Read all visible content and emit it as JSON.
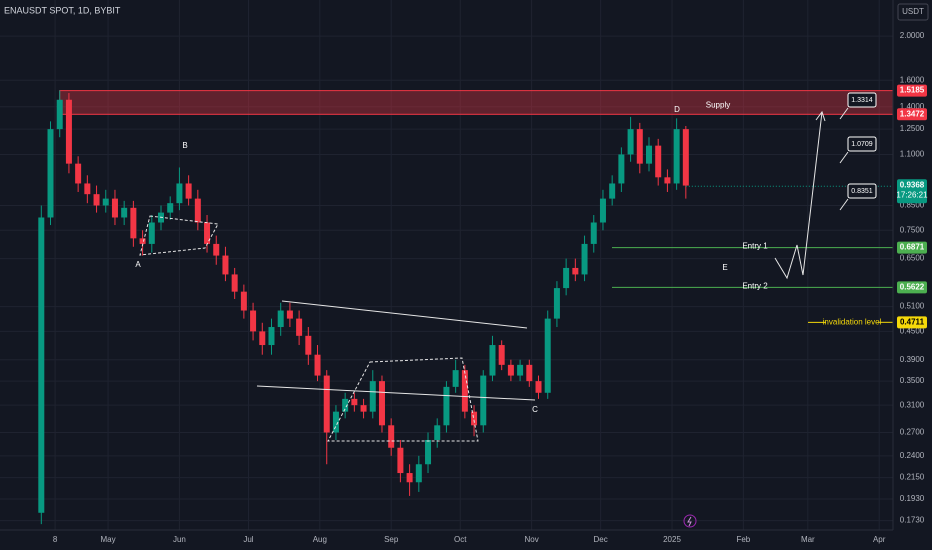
{
  "chart_data": {
    "type": "candlestick",
    "title": "ENAUSDT SPOT, 1D, BYBIT",
    "currency": "USDT",
    "log_scale": true,
    "grid": true,
    "up_color": "#089981",
    "down_color": "#f23645",
    "x": [
      1,
      5,
      9,
      13,
      17,
      21,
      25,
      29,
      33,
      37,
      41,
      45,
      49,
      53,
      57,
      61,
      65,
      69,
      73,
      77,
      81,
      85,
      89,
      93,
      97,
      101,
      105,
      109,
      113,
      117,
      121,
      125,
      129,
      133,
      137,
      141,
      145,
      149,
      153,
      157,
      161,
      165,
      169,
      173,
      177,
      181,
      185,
      189,
      193,
      197,
      201,
      205,
      209,
      213,
      217,
      221,
      225,
      229,
      233,
      237,
      241,
      245,
      249,
      253,
      257,
      261,
      265,
      269,
      273,
      277,
      281
    ],
    "open": [
      0.18,
      0.8,
      1.25,
      1.45,
      1.05,
      0.95,
      0.9,
      0.85,
      0.88,
      0.8,
      0.84,
      0.72,
      0.7,
      0.78,
      0.82,
      0.86,
      0.95,
      0.88,
      0.78,
      0.7,
      0.66,
      0.6,
      0.55,
      0.5,
      0.45,
      0.42,
      0.46,
      0.5,
      0.48,
      0.44,
      0.4,
      0.36,
      0.27,
      0.3,
      0.32,
      0.31,
      0.3,
      0.35,
      0.28,
      0.25,
      0.22,
      0.21,
      0.23,
      0.26,
      0.28,
      0.34,
      0.37,
      0.3,
      0.28,
      0.36,
      0.42,
      0.38,
      0.36,
      0.38,
      0.35,
      0.33,
      0.48,
      0.56,
      0.62,
      0.6,
      0.7,
      0.78,
      0.88,
      0.95,
      1.1,
      1.25,
      1.05,
      1.15,
      0.98,
      0.95,
      1.25
    ],
    "high": [
      0.85,
      1.3,
      1.52,
      1.5,
      1.09,
      0.99,
      0.94,
      0.92,
      0.92,
      0.87,
      0.87,
      0.75,
      0.81,
      0.85,
      0.89,
      1.03,
      0.99,
      0.92,
      0.81,
      0.73,
      0.69,
      0.62,
      0.57,
      0.52,
      0.47,
      0.48,
      0.52,
      0.52,
      0.5,
      0.46,
      0.42,
      0.37,
      0.31,
      0.33,
      0.33,
      0.32,
      0.37,
      0.36,
      0.29,
      0.26,
      0.23,
      0.24,
      0.27,
      0.29,
      0.35,
      0.39,
      0.38,
      0.31,
      0.37,
      0.44,
      0.43,
      0.39,
      0.39,
      0.39,
      0.36,
      0.5,
      0.58,
      0.65,
      0.65,
      0.73,
      0.81,
      0.92,
      0.99,
      1.14,
      1.33,
      1.29,
      1.2,
      1.19,
      1.02,
      1.32,
      1.27
    ],
    "low": [
      0.17,
      0.77,
      1.2,
      1.0,
      0.91,
      0.86,
      0.82,
      0.82,
      0.77,
      0.77,
      0.69,
      0.66,
      0.67,
      0.75,
      0.79,
      0.83,
      0.85,
      0.75,
      0.67,
      0.63,
      0.58,
      0.53,
      0.48,
      0.43,
      0.4,
      0.4,
      0.44,
      0.46,
      0.42,
      0.38,
      0.35,
      0.23,
      0.26,
      0.29,
      0.3,
      0.29,
      0.29,
      0.27,
      0.24,
      0.21,
      0.196,
      0.2,
      0.22,
      0.25,
      0.27,
      0.33,
      0.29,
      0.265,
      0.27,
      0.35,
      0.37,
      0.35,
      0.35,
      0.34,
      0.32,
      0.32,
      0.46,
      0.54,
      0.58,
      0.58,
      0.67,
      0.75,
      0.85,
      0.91,
      1.06,
      1.0,
      1.01,
      0.94,
      0.91,
      0.92,
      0.88
    ],
    "close": [
      0.8,
      1.25,
      1.45,
      1.05,
      0.95,
      0.9,
      0.85,
      0.88,
      0.8,
      0.84,
      0.72,
      0.7,
      0.78,
      0.82,
      0.86,
      0.95,
      0.88,
      0.78,
      0.7,
      0.66,
      0.6,
      0.55,
      0.5,
      0.45,
      0.42,
      0.46,
      0.5,
      0.48,
      0.44,
      0.4,
      0.36,
      0.27,
      0.3,
      0.32,
      0.31,
      0.3,
      0.35,
      0.28,
      0.25,
      0.22,
      0.21,
      0.23,
      0.26,
      0.28,
      0.34,
      0.37,
      0.3,
      0.28,
      0.36,
      0.42,
      0.38,
      0.36,
      0.38,
      0.35,
      0.33,
      0.48,
      0.56,
      0.62,
      0.6,
      0.7,
      0.78,
      0.88,
      0.95,
      1.1,
      1.25,
      1.05,
      1.15,
      0.98,
      0.95,
      1.25,
      0.94
    ],
    "xlim": [
      0,
      371
    ],
    "ylim": [
      0.165,
      2.4
    ],
    "xticks": [
      {
        "value": 7,
        "label": "8"
      },
      {
        "value": 30,
        "label": "May"
      },
      {
        "value": 61,
        "label": "Jun"
      },
      {
        "value": 91,
        "label": "Jul"
      },
      {
        "value": 122,
        "label": "Aug"
      },
      {
        "value": 153,
        "label": "Sep"
      },
      {
        "value": 183,
        "label": "Oct"
      },
      {
        "value": 214,
        "label": "Nov"
      },
      {
        "value": 244,
        "label": "Dec"
      },
      {
        "value": 275,
        "label": "2025"
      },
      {
        "value": 306,
        "label": "Feb"
      },
      {
        "value": 334,
        "label": "Mar"
      },
      {
        "value": 365,
        "label": "Apr"
      }
    ],
    "yticks": [
      {
        "value": 2,
        "label": "2.0000"
      },
      {
        "value": 1.6,
        "label": "1.6000"
      },
      {
        "value": 1.4,
        "label": "1.4000"
      },
      {
        "value": 1.25,
        "label": "1.2500"
      },
      {
        "value": 1.1,
        "label": "1.1000"
      },
      {
        "value": 0.85,
        "label": "0.8500"
      },
      {
        "value": 0.75,
        "label": "0.7500"
      },
      {
        "value": 0.65,
        "label": "0.6500"
      },
      {
        "value": 0.51,
        "label": "0.5100"
      },
      {
        "value": 0.45,
        "label": "0.4500"
      },
      {
        "value": 0.39,
        "label": "0.3900"
      },
      {
        "value": 0.35,
        "label": "0.3500"
      },
      {
        "value": 0.31,
        "label": "0.3100"
      },
      {
        "value": 0.27,
        "label": "0.2700"
      },
      {
        "value": 0.24,
        "label": "0.2400"
      },
      {
        "value": 0.215,
        "label": "0.2150"
      },
      {
        "value": 0.193,
        "label": "0.1930"
      },
      {
        "value": 0.173,
        "label": "0.1730"
      }
    ],
    "supply": {
      "label": "Supply",
      "top": 1.5185,
      "bottom": 1.3472,
      "color": "#f23645"
    },
    "last_price": 0.9368,
    "countdown": "17:26:21",
    "entries": [
      {
        "label": "Entry 1",
        "value": 0.6871
      },
      {
        "label": "Entry 2",
        "value": 0.5622
      }
    ],
    "invalidation": {
      "label": "invalidation level",
      "value": 0.4711,
      "color": "#f5d90a"
    },
    "targets": [
      1.3314,
      1.0709,
      0.8351
    ],
    "points": [
      "A",
      "B",
      "C",
      "D",
      "E"
    ]
  }
}
